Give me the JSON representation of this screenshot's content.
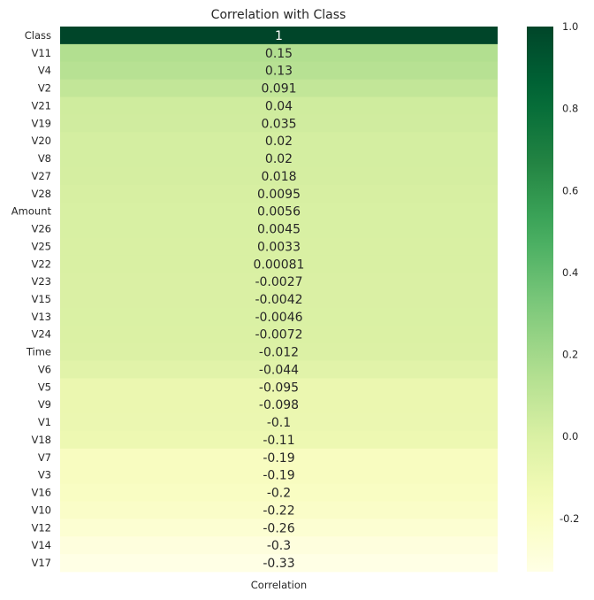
{
  "chart_data": {
    "type": "heatmap",
    "title": "Correlation with Class",
    "xlabel": "",
    "ylabel": "",
    "column_labels": [
      "Correlation"
    ],
    "colormap": "YlGn",
    "vmin": -0.33,
    "vmax": 1.0,
    "colorbar_ticks": [
      "-0.2",
      "0.0",
      "0.2",
      "0.4",
      "0.6",
      "0.8",
      "1.0"
    ],
    "rows": [
      {
        "label": "Class",
        "value": 1,
        "text": "1"
      },
      {
        "label": "V11",
        "value": 0.15,
        "text": "0.15"
      },
      {
        "label": "V4",
        "value": 0.13,
        "text": "0.13"
      },
      {
        "label": "V2",
        "value": 0.091,
        "text": "0.091"
      },
      {
        "label": "V21",
        "value": 0.04,
        "text": "0.04"
      },
      {
        "label": "V19",
        "value": 0.035,
        "text": "0.035"
      },
      {
        "label": "V20",
        "value": 0.02,
        "text": "0.02"
      },
      {
        "label": "V8",
        "value": 0.02,
        "text": "0.02"
      },
      {
        "label": "V27",
        "value": 0.018,
        "text": "0.018"
      },
      {
        "label": "V28",
        "value": 0.0095,
        "text": "0.0095"
      },
      {
        "label": "Amount",
        "value": 0.0056,
        "text": "0.0056"
      },
      {
        "label": "V26",
        "value": 0.0045,
        "text": "0.0045"
      },
      {
        "label": "V25",
        "value": 0.0033,
        "text": "0.0033"
      },
      {
        "label": "V22",
        "value": 0.00081,
        "text": "0.00081"
      },
      {
        "label": "V23",
        "value": -0.0027,
        "text": "-0.0027"
      },
      {
        "label": "V15",
        "value": -0.0042,
        "text": "-0.0042"
      },
      {
        "label": "V13",
        "value": -0.0046,
        "text": "-0.0046"
      },
      {
        "label": "V24",
        "value": -0.0072,
        "text": "-0.0072"
      },
      {
        "label": "Time",
        "value": -0.012,
        "text": "-0.012"
      },
      {
        "label": "V6",
        "value": -0.044,
        "text": "-0.044"
      },
      {
        "label": "V5",
        "value": -0.095,
        "text": "-0.095"
      },
      {
        "label": "V9",
        "value": -0.098,
        "text": "-0.098"
      },
      {
        "label": "V1",
        "value": -0.1,
        "text": "-0.1"
      },
      {
        "label": "V18",
        "value": -0.11,
        "text": "-0.11"
      },
      {
        "label": "V7",
        "value": -0.19,
        "text": "-0.19"
      },
      {
        "label": "V3",
        "value": -0.19,
        "text": "-0.19"
      },
      {
        "label": "V16",
        "value": -0.2,
        "text": "-0.2"
      },
      {
        "label": "V10",
        "value": -0.22,
        "text": "-0.22"
      },
      {
        "label": "V12",
        "value": -0.26,
        "text": "-0.26"
      },
      {
        "label": "V14",
        "value": -0.3,
        "text": "-0.3"
      },
      {
        "label": "V17",
        "value": -0.33,
        "text": "-0.33"
      }
    ]
  }
}
